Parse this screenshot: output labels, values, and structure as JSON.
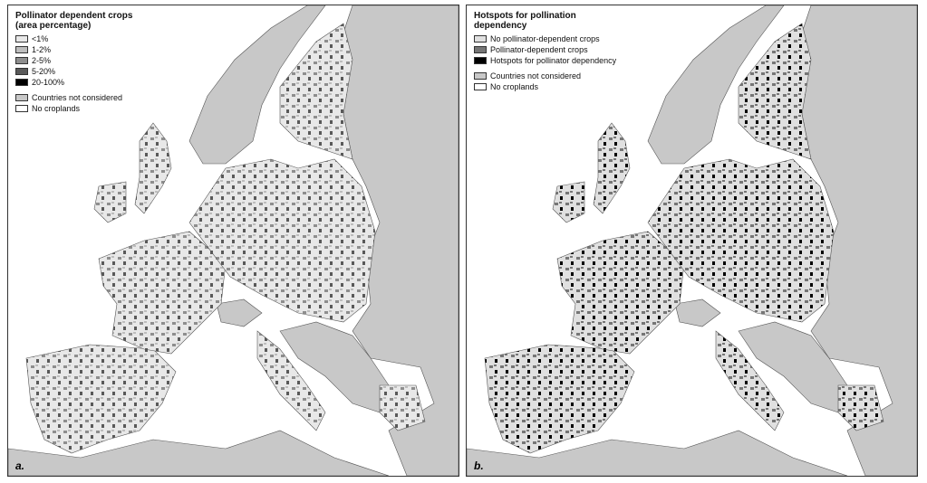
{
  "panels": [
    {
      "legend": {
        "title": "Pollinator dependent crops (area percentage)",
        "items": [
          {
            "label": "<1%",
            "color": "#e8e8e8"
          },
          {
            "label": "1-2%",
            "color": "#bdbdbd"
          },
          {
            "label": "2-5%",
            "color": "#8e8e8e"
          },
          {
            "label": "5-20%",
            "color": "#595959"
          },
          {
            "label": "20-100%",
            "color": "#000000"
          }
        ],
        "extra_items": [
          {
            "label": "Countries not considered",
            "color": "#c8c8c8"
          },
          {
            "label": "No croplands",
            "color": "#ffffff"
          }
        ]
      },
      "label": "a."
    },
    {
      "legend": {
        "title": "Hotspots for pollination dependency",
        "items": [
          {
            "label": "No pollinator-dependent crops",
            "color": "#e0e0e0"
          },
          {
            "label": "Pollinator-dependent crops",
            "color": "#767676"
          },
          {
            "label": "Hotspots for pollinator dependency",
            "color": "#000000"
          }
        ],
        "extra_items": [
          {
            "label": "Countries not considered",
            "color": "#c8c8c8"
          },
          {
            "label": "No croplands",
            "color": "#ffffff"
          }
        ]
      },
      "label": "b."
    }
  ]
}
